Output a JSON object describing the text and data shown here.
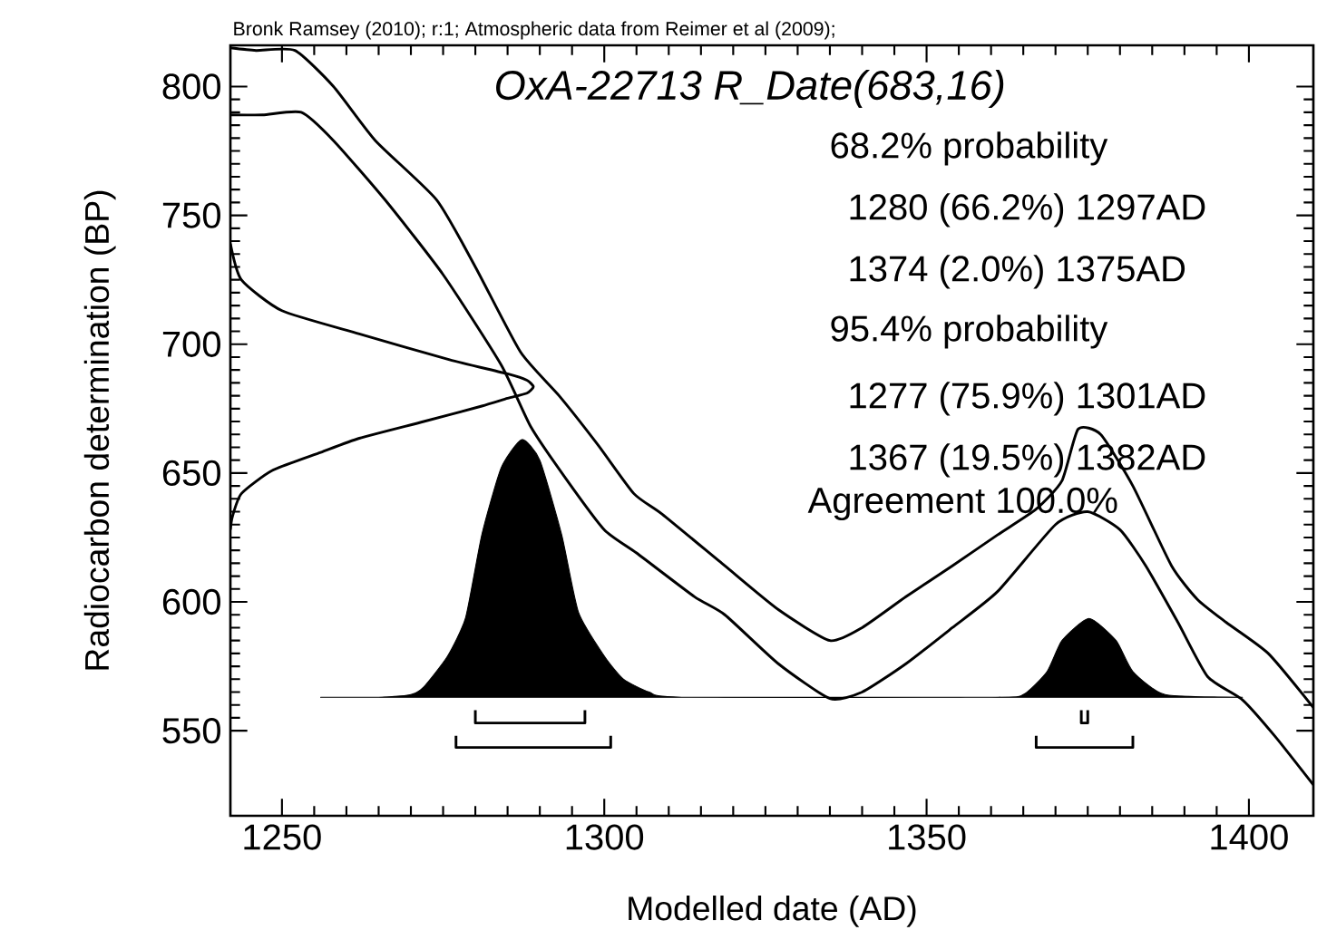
{
  "chart_data": {
    "type": "line",
    "title": "OxA-22713 R_Date(683,16)",
    "xlabel": "Modelled date (AD)",
    "ylabel": "Radiocarbon determination (BP)",
    "annotations": [
      "Bronk Ramsey (2010); r:1; Atmospheric data from Reimer et al (2009);",
      "68.2% probability",
      "1280 (66.2%) 1297AD",
      "1374 (2.0%) 1375AD",
      "95.4% probability",
      "1277 (75.9%) 1301AD",
      "1367 (19.5%) 1382AD",
      "Agreement 100.0%"
    ],
    "xlim": [
      1242,
      1410
    ],
    "ylim": [
      517,
      816
    ],
    "xticks": [
      1250,
      1300,
      1350,
      1400
    ],
    "yticks": [
      550,
      600,
      650,
      700,
      750,
      800
    ],
    "grid": false,
    "line_style": "solid",
    "marker": "none",
    "series": [
      {
        "type": "line",
        "color": "#000000",
        "x": [
          1242,
          1246,
          1252,
          1258,
          1264.5,
          1274,
          1280,
          1287,
          1293,
          1299,
          1304.6,
          1309,
          1318.7,
          1327,
          1335,
          1340,
          1346.8,
          1354,
          1361,
          1367,
          1371,
          1373.5,
          1377,
          1382,
          1388,
          1392,
          1396.5,
          1403,
          1410
        ],
        "values": [
          815,
          814,
          814,
          800,
          779,
          756,
          730,
          697,
          680,
          661,
          642,
          634,
          614,
          597,
          585,
          590,
          602,
          614,
          626,
          636,
          647,
          667,
          665,
          645,
          614,
          601,
          592,
          580,
          559
        ]
      },
      {
        "type": "line",
        "color": "#000000",
        "x": [
          1242,
          1247,
          1253,
          1258,
          1266,
          1275,
          1284,
          1288.6,
          1294,
          1300,
          1305,
          1314,
          1318.7,
          1327,
          1335,
          1340,
          1346.8,
          1354,
          1361,
          1370,
          1375,
          1380,
          1384,
          1389,
          1393.6,
          1399,
          1404,
          1410
        ],
        "values": [
          789,
          789,
          790,
          779,
          756,
          727,
          692,
          668,
          648,
          628,
          619,
          602,
          595,
          576,
          562.5,
          565,
          576,
          590,
          604,
          630,
          635,
          628,
          614,
          592,
          571,
          562,
          548,
          529
        ]
      },
      {
        "type": "line",
        "color": "#000000",
        "x": [
          1242,
          1243.7,
          1250,
          1262,
          1276,
          1285,
          1288,
          1289,
          1288,
          1285,
          1281,
          1272,
          1262,
          1256,
          1248.5,
          1243.7,
          1242.3,
          1242
        ],
        "values": [
          739,
          725,
          713,
          704,
          694,
          688.5,
          686,
          683.5,
          681,
          679,
          676,
          670,
          663.5,
          658,
          651,
          642,
          633,
          628
        ]
      },
      {
        "type": "area",
        "color": "#000000",
        "x": [
          1256,
          1265,
          1270,
          1272,
          1275.7,
          1278.5,
          1281,
          1284,
          1287.2,
          1290,
          1293.4,
          1296,
          1300,
          1303,
          1307,
          1312,
          1360,
          1365,
          1368.7,
          1371,
          1375.2,
          1379.4,
          1382,
          1387,
          1399
        ],
        "values": [
          563,
          563,
          564,
          567,
          579,
          594,
          626,
          652,
          663,
          655,
          626,
          596,
          579,
          570,
          565,
          563,
          563,
          564,
          573,
          585,
          593.6,
          585,
          573,
          564,
          563
        ]
      },
      {
        "type": "line",
        "color": "#000000",
        "x": [
          1280,
          1280,
          1297,
          1297
        ],
        "values": [
          558,
          553,
          553,
          558
        ]
      },
      {
        "type": "line",
        "color": "#000000",
        "x": [
          1277,
          1277,
          1301,
          1301
        ],
        "values": [
          548,
          543.5,
          543.5,
          548
        ]
      },
      {
        "type": "line",
        "color": "#000000",
        "x": [
          1374,
          1374,
          1375,
          1375
        ],
        "values": [
          558,
          553,
          553,
          558
        ]
      },
      {
        "type": "line",
        "color": "#000000",
        "x": [
          1367,
          1367,
          1382,
          1382
        ],
        "values": [
          548,
          543.5,
          543.5,
          548
        ]
      }
    ]
  }
}
